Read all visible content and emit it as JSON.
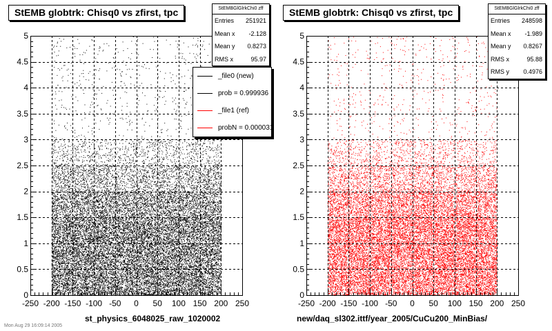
{
  "footer_text": "Mon Aug 29 16:09:14 2005",
  "chart_data": [
    {
      "type": "scatter",
      "title": "StEMB globtrk: Chisq0 vs zfirst, tpc",
      "xlabel": "st_physics_6048025_raw_1020002",
      "ylabel": "",
      "xlim": [
        -250,
        250
      ],
      "ylim": [
        0,
        5
      ],
      "x_ticks": [
        "-250",
        "-200",
        "-150",
        "-100",
        "-50",
        "0",
        "50",
        "100",
        "150",
        "200",
        "250"
      ],
      "y_ticks": [
        "0",
        "0.5",
        "1",
        "1.5",
        "2",
        "2.5",
        "3",
        "3.5",
        "4",
        "4.5",
        "5"
      ],
      "grid": true,
      "marker_color": "#000000",
      "density": {
        "x_range": [
          -200,
          200
        ],
        "bands": [
          {
            "y": [
              0,
              1.5
            ],
            "level": "very high"
          },
          {
            "y": [
              1.5,
              2.0
            ],
            "level": "high"
          },
          {
            "y": [
              2.0,
              2.5
            ],
            "level": "medium"
          },
          {
            "y": [
              2.5,
              3.0
            ],
            "level": "low"
          },
          {
            "y": [
              3.0,
              5.0
            ],
            "level": "sparse"
          }
        ]
      },
      "stats": {
        "name": "StEMBGlGlrkChi0 zff",
        "rows": [
          {
            "label": "Entries",
            "value": "251921"
          },
          {
            "label": "Mean x",
            "value": "-2.128"
          },
          {
            "label": "Mean y",
            "value": "0.8273"
          },
          {
            "label": "RMS x",
            "value": "95.97"
          }
        ]
      },
      "legend": {
        "entries": [
          {
            "label": "_file0 (new)",
            "color": "#000000"
          },
          {
            "label": "prob = 0.999936",
            "color": "#000000"
          },
          {
            "label": "_file1 (ref)",
            "color": "#ff0000"
          },
          {
            "label": "probN = 0.000031",
            "color": "#ff0000"
          }
        ]
      }
    },
    {
      "type": "scatter",
      "title": "StEMB globtrk: Chisq0 vs zfirst, tpc",
      "xlabel": "new/daq_sl302.ittf/year_2005/CuCu200_MinBias/",
      "ylabel": "",
      "xlim": [
        -250,
        250
      ],
      "ylim": [
        0,
        5
      ],
      "x_ticks": [
        "-250",
        "-200",
        "-150",
        "-100",
        "-50",
        "0",
        "50",
        "100",
        "150",
        "200",
        "250"
      ],
      "y_ticks": [
        "0",
        "0.5",
        "1",
        "1.5",
        "2",
        "2.5",
        "3",
        "3.5",
        "4",
        "4.5",
        "5"
      ],
      "grid": true,
      "marker_color": "#ff0000",
      "density": {
        "x_range": [
          -200,
          200
        ],
        "bands": [
          {
            "y": [
              0,
              1.5
            ],
            "level": "very high"
          },
          {
            "y": [
              1.5,
              2.0
            ],
            "level": "high"
          },
          {
            "y": [
              2.0,
              2.5
            ],
            "level": "medium"
          },
          {
            "y": [
              2.5,
              3.0
            ],
            "level": "low"
          },
          {
            "y": [
              3.0,
              5.0
            ],
            "level": "sparse"
          }
        ]
      },
      "stats": {
        "name": "StEMBGlGlrkChi0 zff",
        "rows": [
          {
            "label": "Entries",
            "value": "248598"
          },
          {
            "label": "Mean x",
            "value": "-1.989"
          },
          {
            "label": "Mean y",
            "value": "0.8267"
          },
          {
            "label": "RMS x",
            "value": "95.88"
          },
          {
            "label": "RMS y",
            "value": "0.4976"
          }
        ]
      }
    }
  ]
}
